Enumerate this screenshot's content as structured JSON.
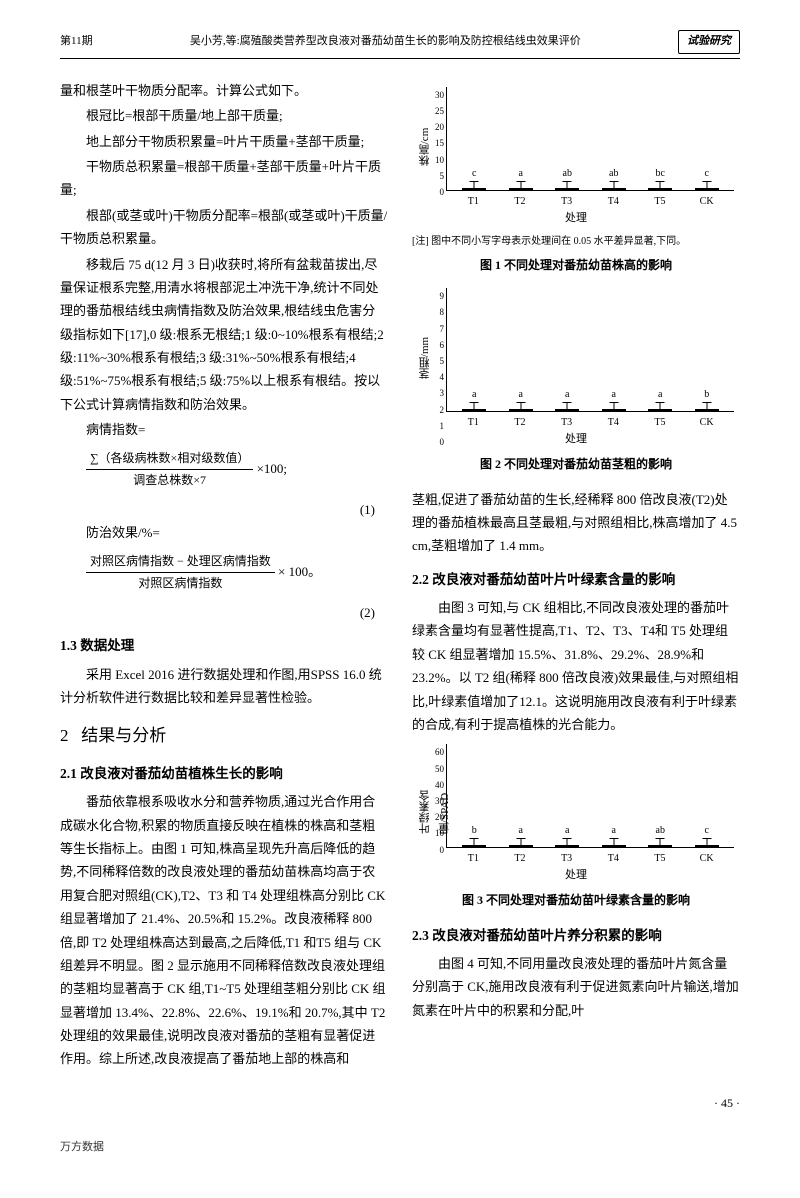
{
  "header": {
    "issue": "第11期",
    "title": "吴小芳,等:腐殖酸类营养型改良液对番茄幼苗生长的影响及防控根结线虫效果评价",
    "badge": "试验研究"
  },
  "left": {
    "p1": "量和根茎叶干物质分配率。计算公式如下。",
    "p2": "根冠比=根部干质量/地上部干质量;",
    "p3": "地上部分干物质积累量=叶片干质量+茎部干质量;",
    "p4": "干物质总积累量=根部干质量+茎部干质量+叶片干质量;",
    "p5": "根部(或茎或叶)干物质分配率=根部(或茎或叶)干质量/干物质总积累量。",
    "p6": "移栽后 75 d(12 月 3 日)收获时,将所有盆栽苗拔出,尽量保证根系完整,用清水将根部泥土冲洗干净,统计不同处理的番茄根结线虫病情指数及防治效果,根结线虫危害分级指标如下[17],0 级:根系无根结;1 级:0~10%根系有根结;2 级:11%~30%根系有根结;3 级:31%~50%根系有根结;4 级:51%~75%根系有根结;5 级:75%以上根系有根结。按以下公式计算病情指数和防治效果。",
    "formula1_label": "病情指数=",
    "formula1_num": "∑（各级病株数×相对级数值）",
    "formula1_den": "调查总株数×7",
    "formula1_tail": "×100;",
    "formula1_eqnum": "(1)",
    "formula2_label": "防治效果/%=",
    "formula2_num": "对照区病情指数 − 处理区病情指数",
    "formula2_den": "对照区病情指数",
    "formula2_tail": "× 100。",
    "formula2_eqnum": "(2)",
    "h13": "1.3  数据处理",
    "p13": "采用 Excel 2016 进行数据处理和作图,用SPSS 16.0 统计分析软件进行数据比较和差异显著性检验。",
    "h2_num": "2",
    "h2_text": "结果与分析",
    "h21": "2.1  改良液对番茄幼苗植株生长的影响",
    "p21": "番茄依靠根系吸收水分和营养物质,通过光合作用合成碳水化合物,积累的物质直接反映在植株的株高和茎粗等生长指标上。由图 1 可知,株高呈现先升高后降低的趋势,不同稀释倍数的改良液处理的番茄幼苗株高均高于农用复合肥对照组(CK),T2、T3 和 T4 处理组株高分别比 CK 组显著增加了 21.4%、20.5%和 15.2%。改良液稀释 800倍,即 T2 处理组株高达到最高,之后降低,T1 和T5 组与 CK 组差异不明显。图 2 显示施用不同稀释倍数改良液处理组的茎粗均显著高于 CK 组,T1~T5 处理组茎粗分别比 CK 组显著增加 13.4%、22.8%、22.6%、19.1%和 20.7%,其中 T2 处理组的效果最佳,说明改良液对番茄的茎粗有显著促进作用。综上所述,改良液提高了番茄地上部的株高和"
  },
  "right": {
    "note1": "[注]  图中不同小写字母表示处理间在 0.05 水平差异显著,下同。",
    "cap1": "图 1  不同处理对番茄幼苗株高的影响",
    "cap2": "图 2  不同处理对番茄幼苗茎粗的影响",
    "p22a": "茎粗,促进了番茄幼苗的生长,经稀释 800 倍改良液(T2)处理的番茄植株最高且茎最粗,与对照组相比,株高增加了 4.5 cm,茎粗增加了 1.4 mm。",
    "h22": "2.2  改良液对番茄幼苗叶片叶绿素含量的影响",
    "p22b": "由图 3 可知,与 CK 组相比,不同改良液处理的番茄叶绿素含量均有显著性提高,T1、T2、T3、T4和 T5 处理组较 CK 组显著增加 15.5%、31.8%、29.2%、28.9%和 23.2%。以 T2 组(稀释 800 倍改良液)效果最佳,与对照组相比,叶绿素值增加了12.1。这说明施用改良液有利于叶绿素的合成,有利于提高植株的光合能力。",
    "cap3": "图 3  不同处理对番茄幼苗叶绿素含量的影响",
    "h23": "2.3  改良液对番茄幼苗叶片养分积累的影响",
    "p23": "由图 4 可知,不同用量改良液处理的番茄叶片氮含量分别高于 CK,施用改良液有利于促进氮素向叶片输送,增加氮素在叶片中的积累和分配,叶"
  },
  "charts": {
    "xlabels": [
      "T1",
      "T2",
      "T3",
      "T4",
      "T5",
      "CK"
    ],
    "xtitle": "处理",
    "c1": {
      "ylabel": "株高/cm",
      "ymax": 30,
      "ticks": [
        "30",
        "25",
        "20",
        "15",
        "10",
        "5",
        "0"
      ],
      "bars": [
        {
          "v": 22,
          "s": "c"
        },
        {
          "v": 26,
          "s": "a"
        },
        {
          "v": 25.8,
          "s": "ab"
        },
        {
          "v": 24.6,
          "s": "ab"
        },
        {
          "v": 23.5,
          "s": "bc"
        },
        {
          "v": 21.4,
          "s": "c"
        }
      ]
    },
    "c2": {
      "ylabel": "茎粗/mm",
      "ymax": 9,
      "ticks": [
        "9",
        "8",
        "7",
        "6",
        "5",
        "4",
        "3",
        "2",
        "1",
        "0"
      ],
      "bars": [
        {
          "v": 7.0,
          "s": "a"
        },
        {
          "v": 7.6,
          "s": "a"
        },
        {
          "v": 7.6,
          "s": "a"
        },
        {
          "v": 7.4,
          "s": "a"
        },
        {
          "v": 7.5,
          "s": "a"
        },
        {
          "v": 6.2,
          "s": "b"
        }
      ]
    },
    "c3": {
      "ylabel": "叶绿素含量/SPAD",
      "ymax": 60,
      "ticks": [
        "60",
        "50",
        "40",
        "30",
        "20",
        "10",
        "0"
      ],
      "bars": [
        {
          "v": 44,
          "s": "b"
        },
        {
          "v": 50,
          "s": "a"
        },
        {
          "v": 49,
          "s": "a"
        },
        {
          "v": 49,
          "s": "a"
        },
        {
          "v": 47,
          "s": "ab"
        },
        {
          "v": 38,
          "s": "c"
        }
      ]
    }
  },
  "page_num": "· 45 ·",
  "watermark": "万方数据"
}
